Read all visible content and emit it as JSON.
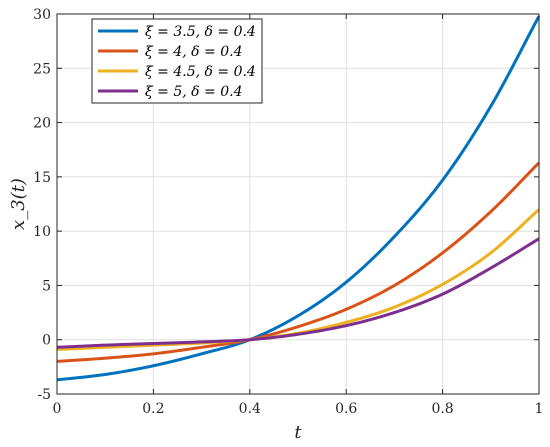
{
  "chart_data": {
    "type": "line",
    "title": "",
    "xlabel": "t",
    "ylabel": "x_3(t)",
    "xlim": [
      0,
      1
    ],
    "ylim": [
      -5,
      30
    ],
    "xticks": [
      0,
      0.2,
      0.4,
      0.6,
      0.8,
      1
    ],
    "xtick_labels": [
      "0",
      "0.2",
      "0.4",
      "0.6",
      "0.8",
      "1"
    ],
    "yticks": [
      -5,
      0,
      5,
      10,
      15,
      20,
      25,
      30
    ],
    "ytick_labels": [
      "-5",
      "0",
      "5",
      "10",
      "15",
      "20",
      "25",
      "30"
    ],
    "grid": true,
    "legend_position": "top-left",
    "x": [
      0,
      0.1,
      0.2,
      0.3,
      0.4,
      0.5,
      0.6,
      0.7,
      0.8,
      0.9,
      1
    ],
    "series": [
      {
        "name": "ξ = 3.5,  δ = 0.4",
        "color": "#0072BD",
        "values": [
          -3.7,
          -3.2,
          -2.4,
          -1.3,
          0,
          2.2,
          5.3,
          9.5,
          14.7,
          21.5,
          29.8
        ]
      },
      {
        "name": "ξ = 4,  δ = 0.4",
        "color": "#D95319",
        "values": [
          -2.0,
          -1.7,
          -1.3,
          -0.7,
          0,
          1.2,
          2.8,
          5.0,
          8.0,
          11.8,
          16.3
        ]
      },
      {
        "name": "ξ = 4.5,  δ = 0.4",
        "color": "#EDB120",
        "values": [
          -0.9,
          -0.7,
          -0.5,
          -0.3,
          0,
          0.6,
          1.6,
          3.0,
          5.1,
          8.0,
          12.0
        ]
      },
      {
        "name": "ξ = 5,  δ = 0.4",
        "color": "#7E2F8E",
        "values": [
          -0.7,
          -0.5,
          -0.35,
          -0.2,
          0,
          0.5,
          1.3,
          2.5,
          4.2,
          6.6,
          9.3
        ]
      }
    ]
  }
}
